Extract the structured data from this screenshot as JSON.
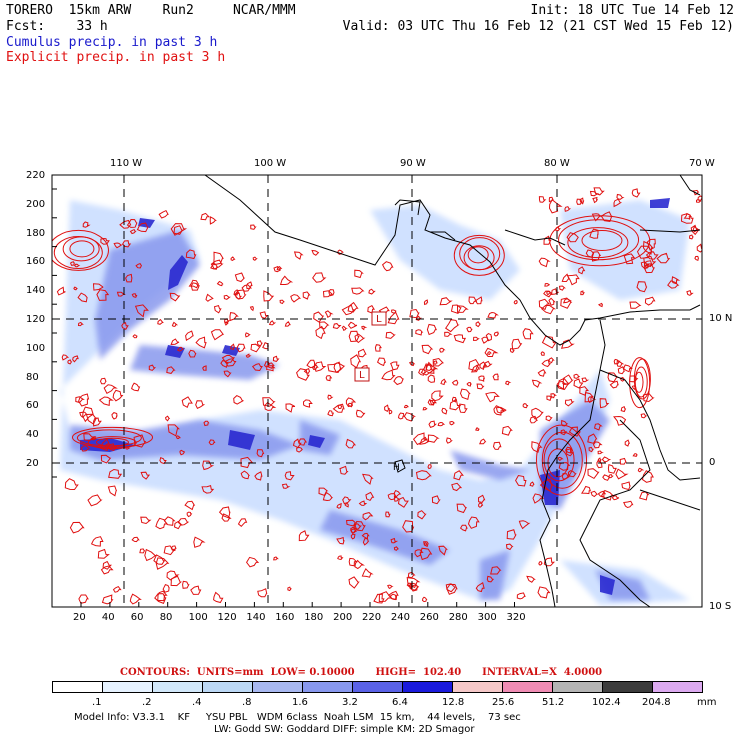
{
  "header": {
    "line1_left": "TORERO  15km ARW    Run2     NCAR/MMM",
    "line1_right": "Init: 18 UTC Tue 14 Feb 12",
    "line2_left": "Fcst:    33 h",
    "line2_right": "Valid: 03 UTC Thu 16 Feb 12 (21 CST Wed 15 Feb 12)",
    "line3": "Cumulus precip. in past 3 h",
    "line4": "Explicit precip. in past 3 h"
  },
  "map": {
    "top_lon_labels": [
      "110 W",
      "100 W",
      "90 W",
      "80 W",
      "70 W"
    ],
    "right_lat_labels": [
      "10 N",
      "0",
      "10 S"
    ],
    "left_y_ticks": [
      "220",
      "200",
      "180",
      "160",
      "140",
      "120",
      "100",
      "80",
      "60",
      "40",
      "20"
    ],
    "bottom_x_ticks": [
      "20",
      "40",
      "60",
      "80",
      "100",
      "120",
      "140",
      "160",
      "180",
      "200",
      "220",
      "240",
      "260",
      "280",
      "300",
      "320"
    ],
    "low_markers": [
      "L",
      "L"
    ],
    "high_marker": "H",
    "colors": {
      "explicit": "#e01010",
      "cumulus_light": "#c8dcff",
      "cumulus_mid": "#7b8cf0",
      "cumulus_dark": "#2a2ad0",
      "coast": "#000000"
    }
  },
  "footer": {
    "contours": "CONTOURS:  UNITS=mm  LOW= 0.10000      HIGH=  102.40      INTERVAL=X  4.0000",
    "colorbar_labels": [
      ".1",
      ".2",
      ".4",
      ".8",
      "1.6",
      "3.2",
      "6.4",
      "12.8",
      "25.6",
      "51.2",
      "102.4",
      "204.8"
    ],
    "colorbar_colors": [
      "#ffffff",
      "#e6f2ff",
      "#d2e8fa",
      "#bcd8f5",
      "#a8b8f0",
      "#8898ee",
      "#5a62e6",
      "#1a1adc",
      "#f5c8c8",
      "#f08cb4",
      "#b4b4b4",
      "#3c3c3c",
      "#dcaaf0"
    ],
    "units": "mm",
    "model_info_1": "Model Info: V3.3.1    KF     YSU PBL   WDM 6class  Noah LSM  15 km,    44 levels,    73 sec",
    "model_info_2": "LW: Godd SW: Goddard DIFF: simple KM: 2D Smagor"
  }
}
